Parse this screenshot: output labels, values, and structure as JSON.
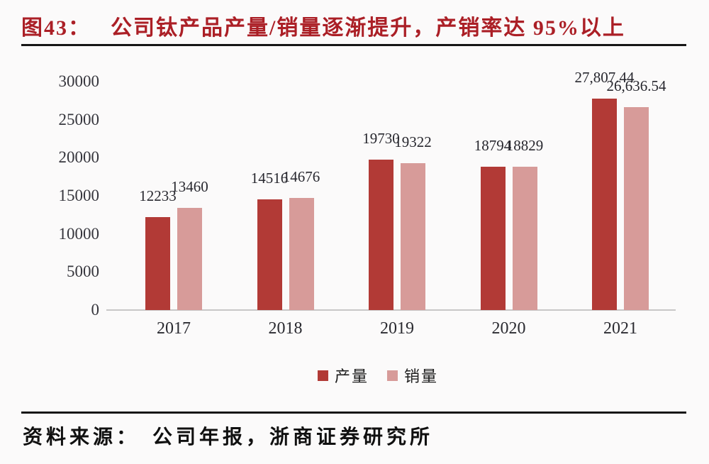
{
  "figure": {
    "label": "图43：",
    "title": "公司钛产品产量/销量逐渐提升，产销率达 95%以上"
  },
  "source": {
    "prefix": "资料来源：",
    "text": "公司年报，浙商证券研究所"
  },
  "theme": {
    "title_red": "#ab1f26",
    "production_red": "#b23a36",
    "sales_pink": "#d79b99",
    "divider_black": "#161616",
    "axis_line_gray": "#c8c7c7"
  },
  "chart_data": {
    "type": "bar",
    "title": "公司钛产品产量/销量逐渐提升，产销率达95%以上",
    "categories": [
      "2017",
      "2018",
      "2019",
      "2020",
      "2021"
    ],
    "series": [
      {
        "key": "production",
        "name": "产量",
        "color": "#b23a36",
        "values": [
          12233,
          14516,
          19730,
          18794,
          27807.44
        ],
        "labels": [
          "12233",
          "14516",
          "19730",
          "18794",
          "27,807.44"
        ]
      },
      {
        "key": "sales",
        "name": "销量",
        "color": "#d79b99",
        "values": [
          13460,
          14676,
          19322,
          18829,
          26636.54
        ],
        "labels": [
          "13460",
          "14676",
          "19322",
          "18829",
          "26,636.54"
        ]
      }
    ],
    "xlabel": "",
    "ylabel": "",
    "ylim": [
      0,
      30000
    ],
    "yticks": [
      0,
      5000,
      10000,
      15000,
      20000,
      25000,
      30000
    ],
    "grid": false,
    "legend_position": "bottom"
  }
}
